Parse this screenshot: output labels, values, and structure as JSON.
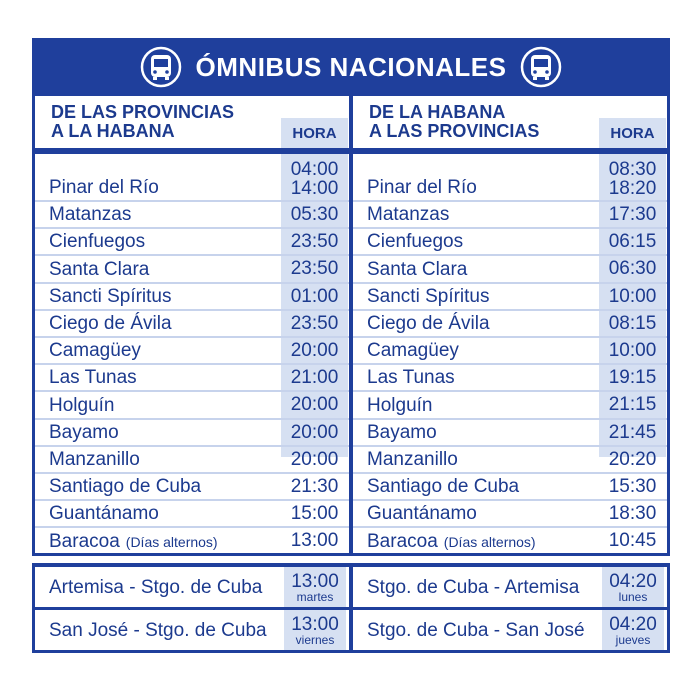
{
  "header": {
    "title": "ÓMNIBUS NACIONALES"
  },
  "panels": [
    {
      "heading": [
        "DE LAS PROVINCIAS",
        "A LA HABANA"
      ],
      "hour_label": "HORA",
      "rows": [
        {
          "city": "Pinar del Río",
          "times": [
            "04:00",
            "14:00"
          ]
        },
        {
          "city": "Matanzas",
          "times": [
            "05:30"
          ]
        },
        {
          "city": "Cienfuegos",
          "times": [
            "23:50"
          ]
        },
        {
          "city": "Santa Clara",
          "times": [
            "23:50"
          ]
        },
        {
          "city": "Sancti Spíritus",
          "times": [
            "01:00"
          ]
        },
        {
          "city": "Ciego de Ávila",
          "times": [
            "23:50"
          ]
        },
        {
          "city": "Camagüey",
          "times": [
            "20:00"
          ]
        },
        {
          "city": "Las Tunas",
          "times": [
            "21:00"
          ]
        },
        {
          "city": "Holguín",
          "times": [
            "20:00"
          ]
        },
        {
          "city": "Bayamo",
          "times": [
            "20:00"
          ]
        },
        {
          "city": "Manzanillo",
          "times": [
            "20:00"
          ]
        },
        {
          "city": "Santiago de Cuba",
          "times": [
            "21:30"
          ]
        },
        {
          "city": "Guantánamo",
          "times": [
            "15:00"
          ]
        },
        {
          "city": "Baracoa",
          "note": "(Días alternos)",
          "times": [
            "13:00"
          ]
        }
      ]
    },
    {
      "heading": [
        "DE LA HABANA",
        "A LAS PROVINCIAS"
      ],
      "hour_label": "HORA",
      "rows": [
        {
          "city": "Pinar del Río",
          "times": [
            "08:30",
            "18:20"
          ]
        },
        {
          "city": "Matanzas",
          "times": [
            "17:30"
          ]
        },
        {
          "city": "Cienfuegos",
          "times": [
            "06:15"
          ]
        },
        {
          "city": "Santa Clara",
          "times": [
            "06:30"
          ]
        },
        {
          "city": "Sancti Spíritus",
          "times": [
            "10:00"
          ]
        },
        {
          "city": "Ciego de Ávila",
          "times": [
            "08:15"
          ]
        },
        {
          "city": "Camagüey",
          "times": [
            "10:00"
          ]
        },
        {
          "city": "Las Tunas",
          "times": [
            "19:15"
          ]
        },
        {
          "city": "Holguín",
          "times": [
            "21:15"
          ]
        },
        {
          "city": "Bayamo",
          "times": [
            "21:45"
          ]
        },
        {
          "city": "Manzanillo",
          "times": [
            "20:20"
          ]
        },
        {
          "city": "Santiago de Cuba",
          "times": [
            "15:30"
          ]
        },
        {
          "city": "Guantánamo",
          "times": [
            "18:30"
          ]
        },
        {
          "city": "Baracoa",
          "note": "(Días alternos)",
          "times": [
            "10:45"
          ]
        }
      ]
    }
  ],
  "extra": [
    [
      {
        "route": "Artemisa - Stgo. de Cuba",
        "time": "13:00",
        "day": "martes"
      },
      {
        "route": "San José - Stgo. de Cuba",
        "time": "13:00",
        "day": "viernes"
      }
    ],
    [
      {
        "route": "Stgo. de Cuba - Artemisa",
        "time": "04:20",
        "day": "lunes"
      },
      {
        "route": "Stgo. de Cuba - San José",
        "time": "04:20",
        "day": "jueves"
      }
    ]
  ]
}
